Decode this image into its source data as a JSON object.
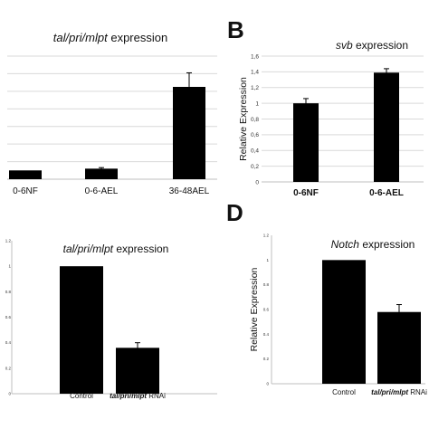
{
  "panel_letters": {
    "b": "B",
    "d": "D"
  },
  "chart_data": [
    {
      "id": "A",
      "type": "bar",
      "title_parts": [
        {
          "text": "tal/pri/mlpt",
          "italic": true
        },
        {
          "text": " expression",
          "italic": false
        }
      ],
      "categories": [
        "0-6NF",
        "0-6-AEL",
        "36-48AEL"
      ],
      "values": [
        1,
        1.2,
        10.5
      ],
      "errors": [
        0,
        0.12,
        1.6
      ],
      "ylim": [
        0,
        14
      ],
      "yticks": [
        0,
        2,
        4,
        6,
        8,
        10,
        12,
        14
      ],
      "show_tick_labels": false,
      "ylabel": "",
      "grid": true,
      "bar_color": "#000000",
      "cat_bold": false
    },
    {
      "id": "B",
      "type": "bar",
      "title_parts": [
        {
          "text": "svb",
          "italic": true
        },
        {
          "text": " expression",
          "italic": false
        }
      ],
      "categories": [
        "0-6NF",
        "0-6-AEL"
      ],
      "values": [
        1.0,
        1.39
      ],
      "errors": [
        0.06,
        0.05
      ],
      "ylim": [
        0,
        1.6
      ],
      "yticks": [
        0,
        0.2,
        0.4,
        0.6,
        0.8,
        1,
        1.2,
        1.4,
        1.6
      ],
      "tick_labels": [
        "0",
        "0,2",
        "0,4",
        "0,6",
        "0,8",
        "1",
        "1,2",
        "1,4",
        "1,6"
      ],
      "show_tick_labels": true,
      "ylabel": "Relative Expression",
      "grid": true,
      "bar_color": "#000000",
      "cat_bold": true
    },
    {
      "id": "C",
      "type": "bar",
      "title_parts": [
        {
          "text": "tal/pri/mlpt",
          "italic": true
        },
        {
          "text": " expression",
          "italic": false
        }
      ],
      "categories": [
        [
          {
            "text": "Control",
            "italic": false,
            "bold": false
          }
        ],
        [
          {
            "text": "tal/pri/mlpt",
            "italic": true,
            "bold": true
          },
          {
            "text": " RNAi",
            "italic": false,
            "bold": false
          }
        ]
      ],
      "values": [
        1.0,
        0.36
      ],
      "errors": [
        0,
        0.04
      ],
      "ylim": [
        0,
        1.2
      ],
      "yticks": [
        0,
        0.2,
        0.4,
        0.6,
        0.8,
        1,
        1.2
      ],
      "tick_labels": [
        "0",
        "0.2",
        "0.4",
        "0.6",
        "0.8",
        "1",
        "1.2"
      ],
      "show_tick_labels": true,
      "ylabel": "",
      "grid": false,
      "bar_color": "#000000"
    },
    {
      "id": "D",
      "type": "bar",
      "title_parts": [
        {
          "text": "Notch",
          "italic": true
        },
        {
          "text": " expression",
          "italic": false
        }
      ],
      "categories": [
        [
          {
            "text": "Control",
            "italic": false,
            "bold": false
          }
        ],
        [
          {
            "text": "tal/pri/mlpt",
            "italic": true,
            "bold": true
          },
          {
            "text": " RNAi",
            "italic": false,
            "bold": false
          }
        ]
      ],
      "values": [
        1.0,
        0.58
      ],
      "errors": [
        0,
        0.06
      ],
      "ylim": [
        0,
        1.2
      ],
      "yticks": [
        0,
        0.2,
        0.4,
        0.6,
        0.8,
        1,
        1.2
      ],
      "tick_labels": [
        "0",
        "0.2",
        "0.4",
        "0.6",
        "0.8",
        "1",
        "1.2"
      ],
      "show_tick_labels": true,
      "ylabel": "Relative Expression",
      "grid": false,
      "bar_color": "#000000"
    }
  ]
}
